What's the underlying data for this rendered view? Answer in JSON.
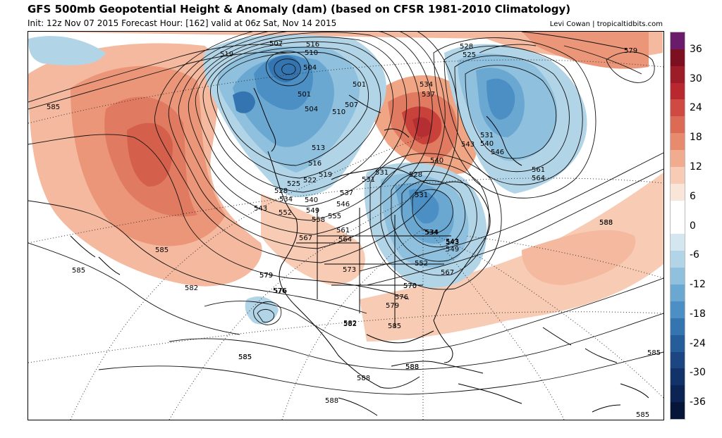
{
  "header": {
    "title": "GFS 500mb Geopotential Height & Anomaly (dam) (based on CFSR 1981-2010 Climatology)",
    "init_text": "Init: 12z Nov 07 2015   Forecast Hour: [162]   valid at 06z Sat, Nov 14 2015",
    "credit": "Levi Cowan | tropicaltidbits.com"
  },
  "colorbar": {
    "labels": [
      "36",
      "30",
      "24",
      "18",
      "12",
      "6",
      "0",
      "-6",
      "-12",
      "-18",
      "-24",
      "-30",
      "-36"
    ],
    "colors": [
      "#6a1b6a",
      "#7d1020",
      "#9c1c27",
      "#b8282e",
      "#cf4a43",
      "#dc6b55",
      "#e88a6c",
      "#f1ac8f",
      "#f7cbb4",
      "#fae5d9",
      "#ffffff",
      "#ffffff",
      "#d4e7f1",
      "#b2d4e7",
      "#8fc0dd",
      "#6aa8d2",
      "#4b8fc4",
      "#3475b1",
      "#255c9a",
      "#1b4682",
      "#12336a",
      "#0b2454",
      "#061638"
    ]
  },
  "map": {
    "contour_labels": [
      "507",
      "516",
      "510",
      "504",
      "519",
      "501",
      "504",
      "501",
      "507",
      "510",
      "513",
      "516",
      "519",
      "522",
      "525",
      "528",
      "531",
      "534",
      "537",
      "540",
      "543",
      "546",
      "549",
      "552",
      "555",
      "558",
      "561",
      "564",
      "567",
      "570",
      "573",
      "576",
      "579",
      "582",
      "585",
      "588",
      "528",
      "525",
      "534",
      "537",
      "531",
      "540",
      "543",
      "546",
      "540",
      "528",
      "531",
      "561",
      "564",
      "579",
      "585",
      "585",
      "582",
      "576",
      "579",
      "582",
      "585",
      "585",
      "588",
      "588",
      "588",
      "588",
      "585",
      "585",
      "585",
      "543",
      "534",
      "531",
      "534",
      "543",
      "549",
      "552",
      "567",
      "576",
      "579",
      "570",
      "588"
    ]
  }
}
